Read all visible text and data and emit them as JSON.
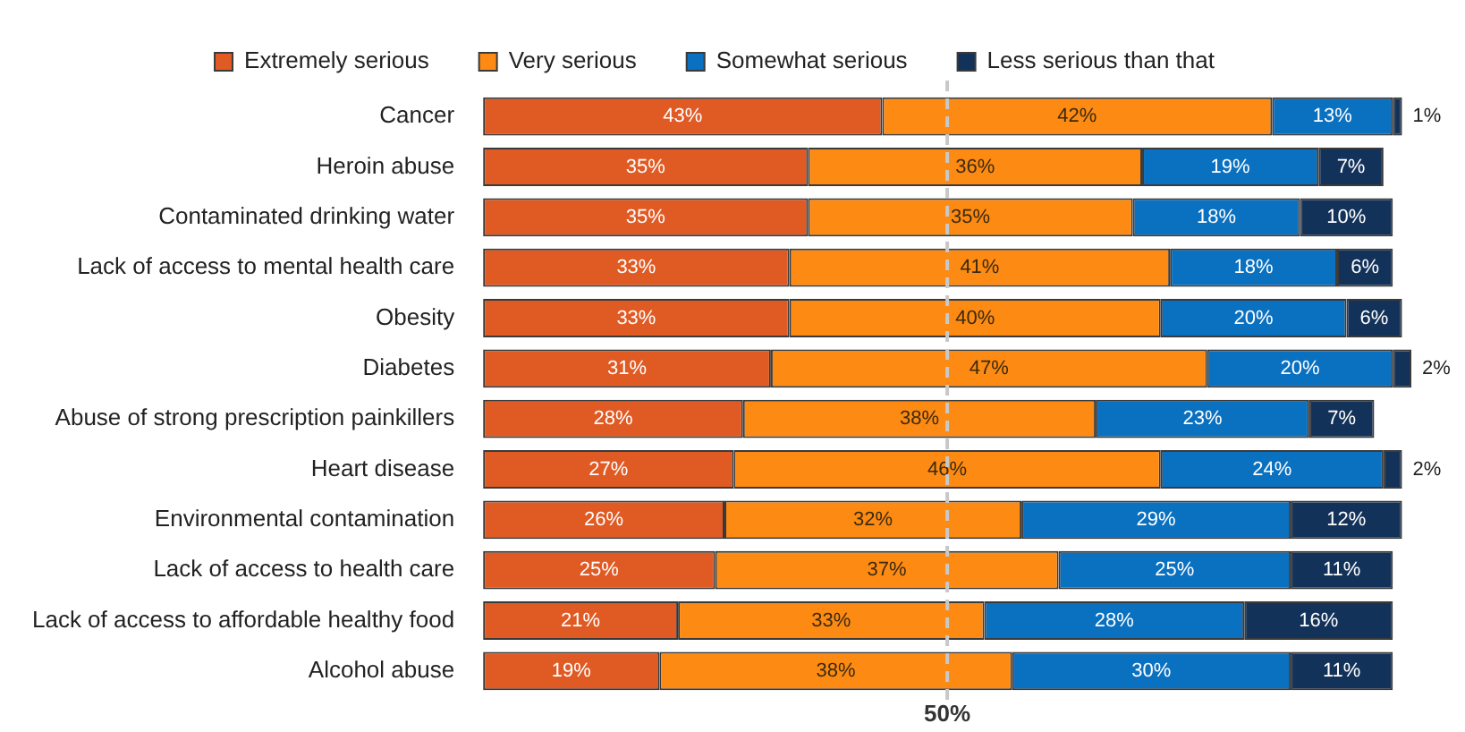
{
  "chart_data": {
    "type": "bar",
    "orientation": "horizontal",
    "stacked": true,
    "categories": [
      "Cancer",
      "Heroin abuse",
      "Contaminated drinking water",
      "Lack of access to mental health care",
      "Obesity",
      "Diabetes",
      "Abuse of strong prescription painkillers",
      "Heart disease",
      "Environmental contamination",
      "Lack of access to health care",
      "Lack of access to affordable healthy food",
      "Alcohol abuse"
    ],
    "series": [
      {
        "name": "Extremely serious",
        "color": "#e05a24",
        "values": [
          43,
          35,
          35,
          33,
          33,
          31,
          28,
          27,
          26,
          25,
          21,
          19
        ],
        "value_labels": [
          "43%",
          "35%",
          "35%",
          "33%",
          "33%",
          "31%",
          "28%",
          "27%",
          "26%",
          "25%",
          "21%",
          "19%"
        ]
      },
      {
        "name": "Very serious",
        "color": "#fd8a12",
        "values": [
          42,
          36,
          35,
          41,
          40,
          47,
          38,
          46,
          32,
          37,
          33,
          38
        ],
        "value_labels": [
          "42%",
          "36%",
          "35%",
          "41%",
          "40%",
          "47%",
          "38%",
          "46%",
          "32%",
          "37%",
          "33%",
          "38%"
        ]
      },
      {
        "name": "Somewhat serious",
        "color": "#0a70c0",
        "values": [
          13,
          19,
          18,
          18,
          20,
          20,
          23,
          24,
          29,
          25,
          28,
          30
        ],
        "value_labels": [
          "13%",
          "19%",
          "18%",
          "18%",
          "20%",
          "20%",
          "23%",
          "24%",
          "29%",
          "25%",
          "28%",
          "30%"
        ]
      },
      {
        "name": "Less serious than that",
        "color": "#13325a",
        "values": [
          1,
          7,
          10,
          6,
          6,
          2,
          7,
          2,
          12,
          11,
          16,
          11
        ],
        "value_labels": [
          "1%",
          "7%",
          "10%",
          "6%",
          "6%",
          "2%",
          "7%",
          "2%",
          "12%",
          "11%",
          "16%",
          "11%"
        ]
      }
    ],
    "xlim": [
      0,
      100
    ],
    "tick_labels": "y",
    "legend": "top",
    "ref_lines": [
      {
        "axis": "x",
        "value": 50,
        "label": "50%",
        "color": "#c8c8c8",
        "line_style": "dashed"
      }
    ]
  }
}
